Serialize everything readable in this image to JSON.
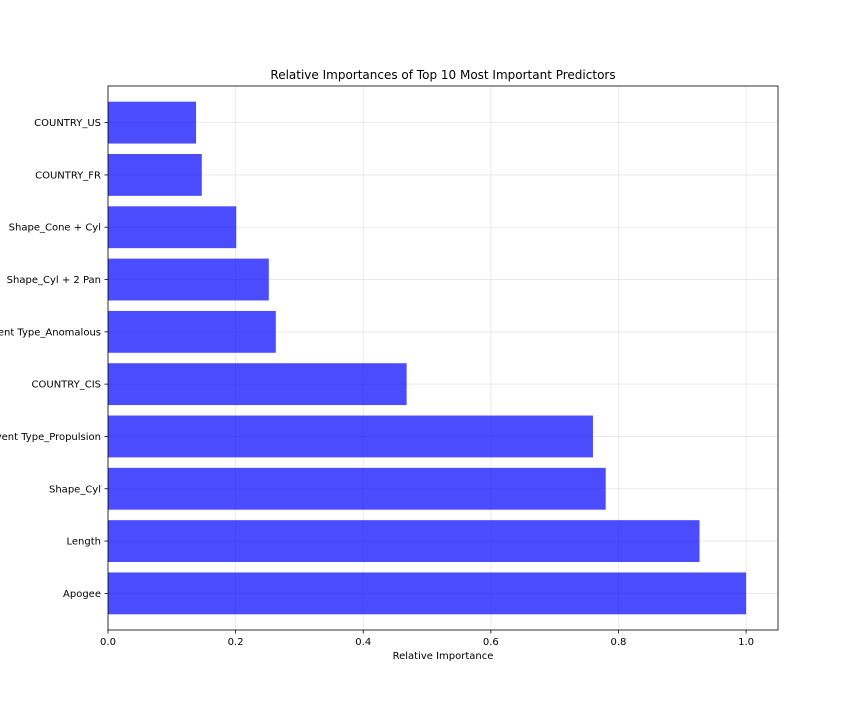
{
  "chart_data": {
    "type": "bar",
    "orientation": "horizontal",
    "title": "Relative Importances of Top 10 Most Important Predictors",
    "xlabel": "Relative Importance",
    "ylabel": "",
    "categories": [
      "Apogee",
      "Length",
      "Shape_Cyl",
      "Event Type_Propulsion",
      "COUNTRY_CIS",
      "Event Type_Anomalous",
      "Shape_Cyl + 2 Pan",
      "Shape_Cone + Cyl",
      "COUNTRY_FR",
      "COUNTRY_US"
    ],
    "values": [
      1.0,
      0.927,
      0.78,
      0.76,
      0.468,
      0.263,
      0.252,
      0.201,
      0.147,
      0.138
    ],
    "xlim": [
      0,
      1.05
    ],
    "xticks": [
      "0.0",
      "0.2",
      "0.4",
      "0.6",
      "0.8",
      "1.0"
    ],
    "grid": true,
    "bar_color": "#0000ff",
    "bar_alpha": 0.7
  }
}
